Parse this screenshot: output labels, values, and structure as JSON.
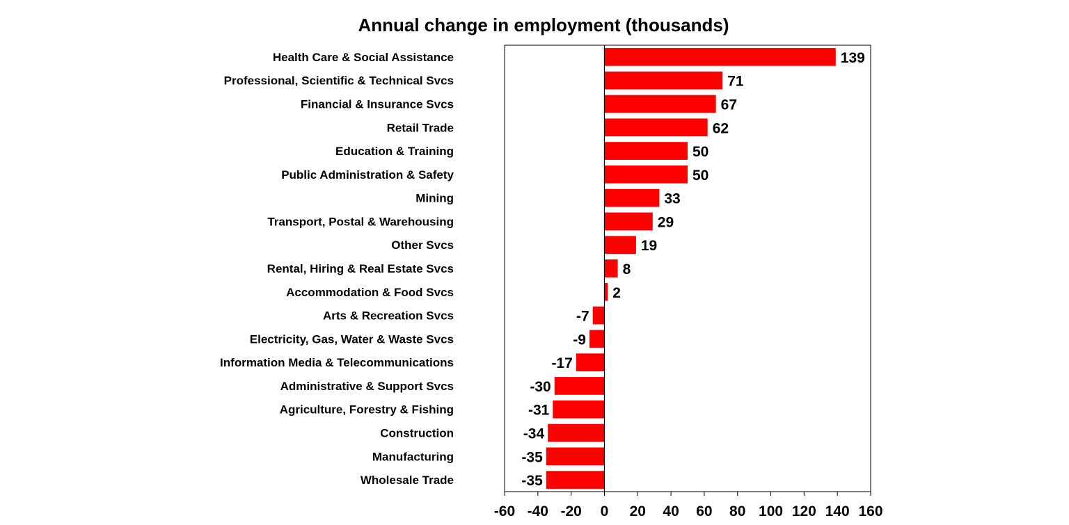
{
  "chart_data": {
    "type": "bar",
    "orientation": "horizontal",
    "title": "Annual change in employment (thousands)",
    "xlabel": "",
    "ylabel": "",
    "xlim": [
      -60,
      160
    ],
    "xticks": [
      "-60",
      "-40",
      "-20",
      "0",
      "20",
      "40",
      "60",
      "80",
      "100",
      "120",
      "140",
      "160"
    ],
    "grid": false,
    "bar_color": "#ff0000",
    "categories": [
      "Health Care & Social Assistance",
      "Professional, Scientific & Technical Svcs",
      "Financial & Insurance Svcs",
      "Retail Trade",
      "Education & Training",
      "Public Administration & Safety",
      "Mining",
      "Transport, Postal & Warehousing",
      "Other Svcs",
      "Rental, Hiring & Real Estate Svcs",
      "Accommodation & Food Svcs",
      "Arts & Recreation Svcs",
      "Electricity, Gas, Water & Waste Svcs",
      "Information Media & Telecommunications",
      "Administrative & Support Svcs",
      "Agriculture, Forestry & Fishing",
      "Construction",
      "Manufacturing",
      "Wholesale Trade"
    ],
    "values": [
      139,
      71,
      67,
      62,
      50,
      50,
      33,
      29,
      19,
      8,
      2,
      -7,
      -9,
      -17,
      -30,
      -31,
      -34,
      -35,
      -35
    ]
  }
}
